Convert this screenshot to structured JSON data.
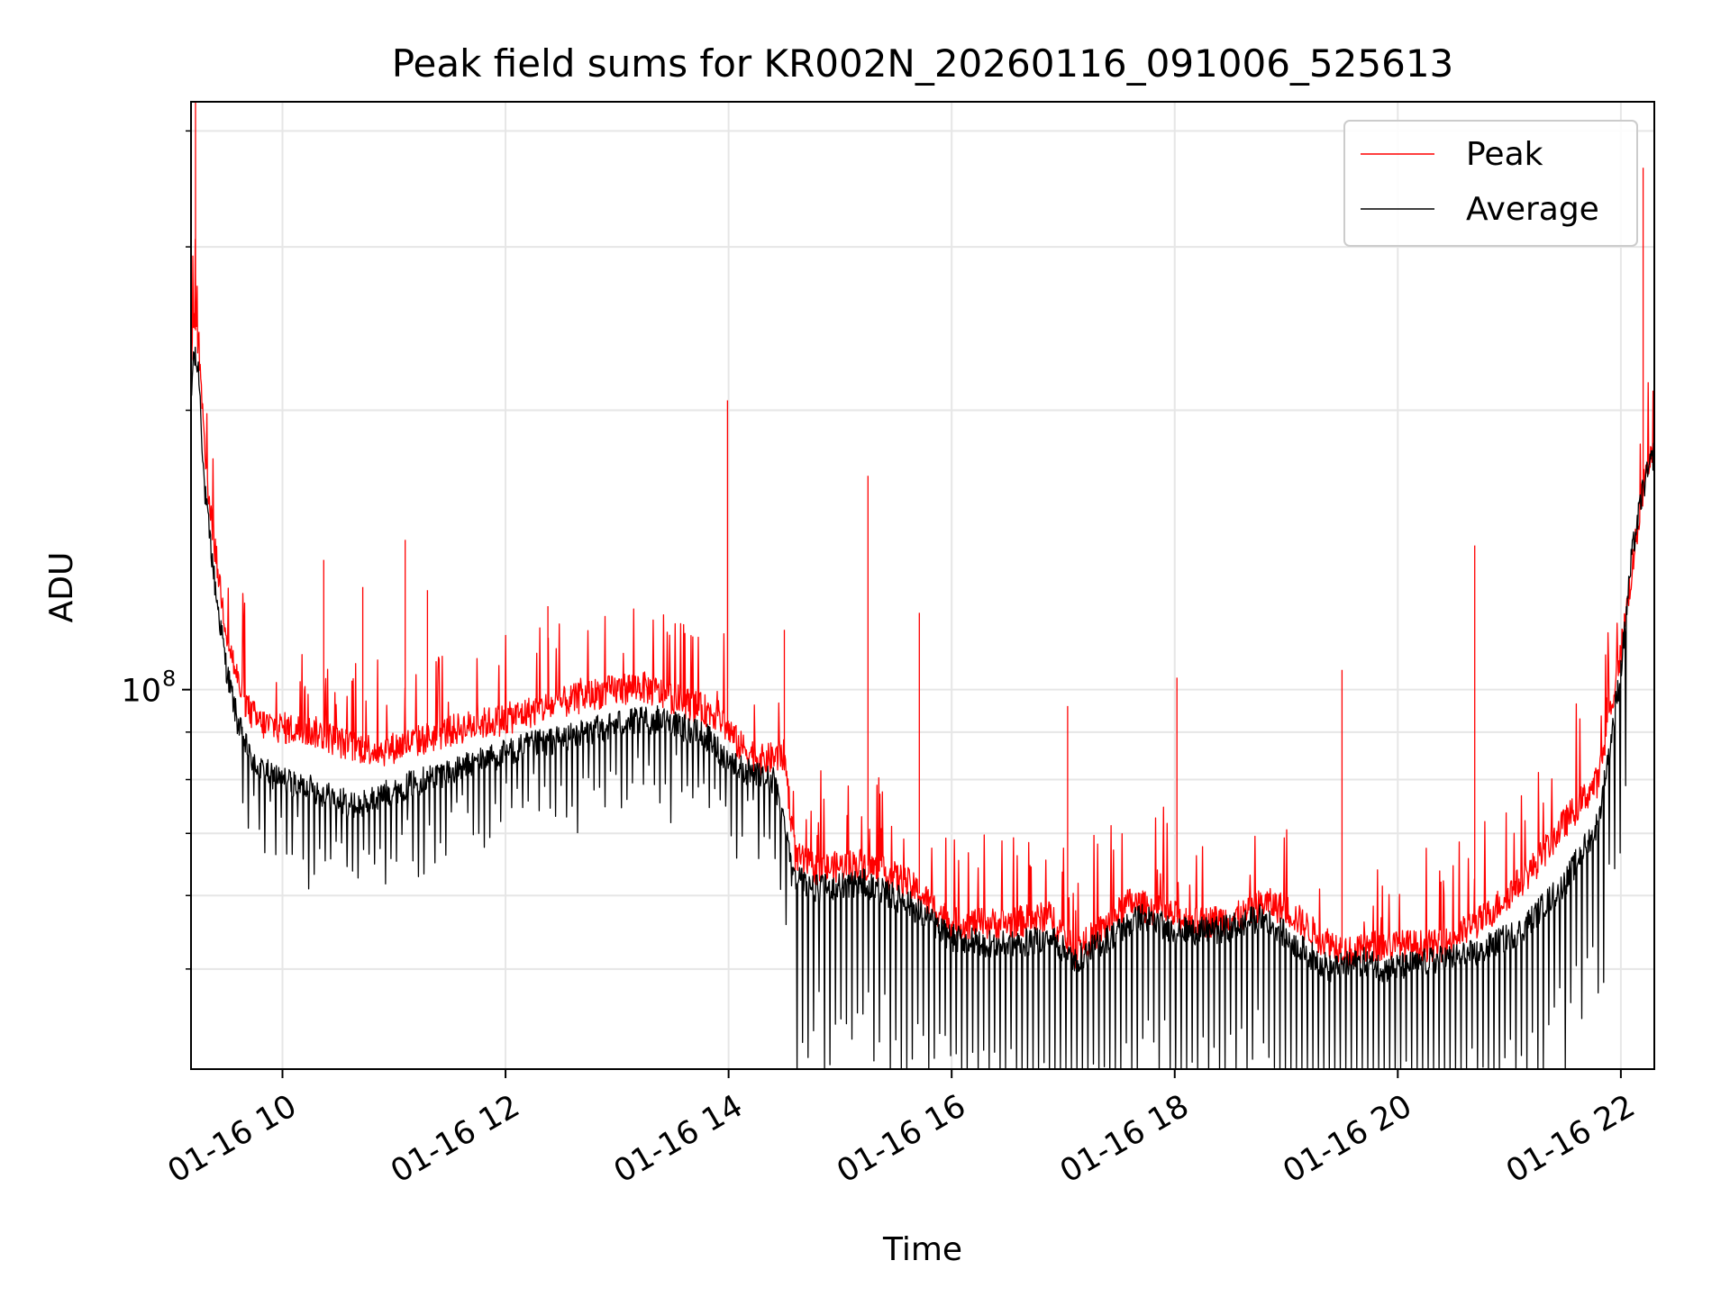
{
  "chart_data": {
    "type": "line",
    "title": "Peak field sums for KR002N_20260116_091006_525613",
    "xlabel": "Time",
    "ylabel": "ADU",
    "y_scale": "log",
    "ylim": [
      39000000,
      430000000
    ],
    "xlim_hours": [
      9.18,
      22.3
    ],
    "grid": true,
    "legend_position": "top-right",
    "x_ticks": [
      {
        "value": 10,
        "label": "01-16 10"
      },
      {
        "value": 12,
        "label": "01-16 12"
      },
      {
        "value": 14,
        "label": "01-16 14"
      },
      {
        "value": 16,
        "label": "01-16 16"
      },
      {
        "value": 18,
        "label": "01-16 18"
      },
      {
        "value": 20,
        "label": "01-16 20"
      },
      {
        "value": 22,
        "label": "01-16 22"
      }
    ],
    "y_major_tick": {
      "value": 100000000,
      "label_base": "10",
      "label_exp": "8"
    },
    "y_minor_ticks": [
      50000000,
      60000000,
      70000000,
      80000000,
      90000000,
      200000000,
      300000000,
      400000000
    ],
    "series": [
      {
        "name": "Peak",
        "color": "#ff0000",
        "x": [
          9.18,
          9.2,
          9.25,
          9.3,
          9.4,
          9.5,
          9.6,
          9.7,
          9.8,
          10,
          10.3,
          10.6,
          10.9,
          11.2,
          11.6,
          12,
          12.4,
          12.8,
          13.2,
          13.6,
          13.9,
          14.1,
          14.3,
          14.5,
          14.6,
          14.8,
          15.2,
          15.6,
          16,
          16.5,
          16.9,
          17.1,
          17.4,
          17.6,
          17.8,
          18.2,
          18.6,
          18.8,
          19,
          19.3,
          19.6,
          19.8,
          20,
          20.4,
          20.8,
          21.2,
          21.5,
          21.8,
          22,
          22.2,
          22.3
        ],
        "y": [
          220000000,
          250000000,
          235000000,
          180000000,
          140000000,
          115000000,
          102000000,
          95000000,
          92000000,
          91000000,
          90000000,
          87000000,
          86000000,
          88000000,
          91000000,
          93000000,
          96000000,
          99000000,
          101000000,
          97000000,
          94000000,
          87000000,
          84000000,
          85000000,
          66000000,
          64000000,
          65000000,
          62000000,
          56000000,
          56000000,
          57000000,
          52000000,
          56000000,
          59000000,
          58000000,
          56000000,
          57000000,
          59000000,
          58000000,
          54000000,
          52000000,
          53000000,
          53000000,
          53000000,
          57000000,
          64000000,
          72000000,
          80000000,
          110000000,
          165000000,
          185000000
        ],
        "spikes": [
          {
            "x": 9.22,
            "y": 430000000
          },
          {
            "x": 10.37,
            "y": 138000000
          },
          {
            "x": 10.72,
            "y": 129000000
          },
          {
            "x": 11.1,
            "y": 145000000
          },
          {
            "x": 11.3,
            "y": 128000000
          },
          {
            "x": 12.38,
            "y": 123000000
          },
          {
            "x": 13.99,
            "y": 205000000
          },
          {
            "x": 14.5,
            "y": 116000000
          },
          {
            "x": 15.25,
            "y": 170000000
          },
          {
            "x": 15.71,
            "y": 121000000
          },
          {
            "x": 17.04,
            "y": 96000000
          },
          {
            "x": 18.02,
            "y": 103000000
          },
          {
            "x": 19.5,
            "y": 105000000
          },
          {
            "x": 20.69,
            "y": 143000000
          },
          {
            "x": 22.2,
            "y": 365000000
          }
        ]
      },
      {
        "name": "Average",
        "color": "#000000",
        "x": [
          9.18,
          9.2,
          9.25,
          9.3,
          9.4,
          9.5,
          9.6,
          9.7,
          9.8,
          10,
          10.3,
          10.5,
          10.7,
          11,
          11.4,
          11.8,
          12.2,
          12.6,
          13,
          13.4,
          13.8,
          14,
          14.2,
          14.4,
          14.5,
          14.6,
          14.8,
          15.2,
          15.6,
          16,
          16.5,
          16.9,
          17.1,
          17.4,
          17.7,
          18,
          18.4,
          18.8,
          19.1,
          19.4,
          19.7,
          19.9,
          20.3,
          20.7,
          21.1,
          21.5,
          21.8,
          22,
          22.1,
          22.2,
          22.3
        ],
        "y": [
          200000000,
          230000000,
          220000000,
          165000000,
          128000000,
          105000000,
          92000000,
          85000000,
          82000000,
          80000000,
          78000000,
          76000000,
          75000000,
          78000000,
          81000000,
          84000000,
          87000000,
          89000000,
          92000000,
          93000000,
          89000000,
          84000000,
          81000000,
          80000000,
          72000000,
          63000000,
          61000000,
          62000000,
          59000000,
          54000000,
          53000000,
          54000000,
          51000000,
          54000000,
          57000000,
          55000000,
          55000000,
          57000000,
          53000000,
          50000000,
          51000000,
          50000000,
          51000000,
          52000000,
          55000000,
          62000000,
          72000000,
          105000000,
          140000000,
          165000000,
          180000000
        ]
      }
    ]
  },
  "legend": [
    {
      "label": "Peak",
      "color": "#ff0000"
    },
    {
      "label": "Average",
      "color": "#000000"
    }
  ]
}
